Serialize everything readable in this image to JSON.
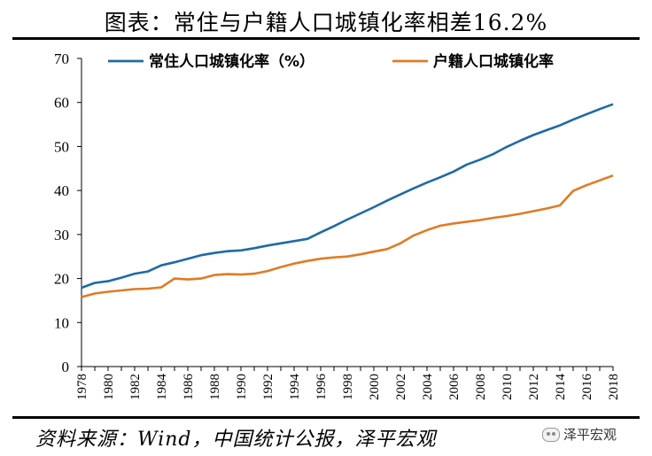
{
  "header": {
    "title": "图表：常住与户籍人口城镇化率相差16.2%"
  },
  "footer": {
    "source": "资料来源：Wind，中国统计公报，泽平宏观",
    "watermark": "泽平宏观"
  },
  "chart_data": {
    "type": "line",
    "title": "图表：常住与户籍人口城镇化率相差16.2%",
    "xlabel": "",
    "ylabel": "",
    "xlim": [
      1978,
      2018
    ],
    "ylim": [
      0,
      70
    ],
    "yticks": [
      0,
      10,
      20,
      30,
      40,
      50,
      60,
      70
    ],
    "xticks": [
      1978,
      1980,
      1982,
      1984,
      1986,
      1988,
      1990,
      1992,
      1994,
      1996,
      1998,
      2000,
      2002,
      2004,
      2006,
      2008,
      2010,
      2012,
      2014,
      2016,
      2018
    ],
    "grid": false,
    "legend_position": "top",
    "x": [
      1978,
      1979,
      1980,
      1981,
      1982,
      1983,
      1984,
      1985,
      1986,
      1987,
      1988,
      1989,
      1990,
      1991,
      1992,
      1993,
      1994,
      1995,
      1996,
      1997,
      1998,
      1999,
      2000,
      2001,
      2002,
      2003,
      2004,
      2005,
      2006,
      2007,
      2008,
      2009,
      2010,
      2011,
      2012,
      2013,
      2014,
      2015,
      2016,
      2017,
      2018
    ],
    "series": [
      {
        "name": "常住人口城镇化率（%）",
        "color": "#1f6aa5",
        "values": [
          17.9,
          19.0,
          19.4,
          20.2,
          21.1,
          21.6,
          23.0,
          23.7,
          24.5,
          25.3,
          25.8,
          26.2,
          26.4,
          26.9,
          27.5,
          28.0,
          28.5,
          29.0,
          30.5,
          31.9,
          33.4,
          34.8,
          36.2,
          37.7,
          39.1,
          40.5,
          41.8,
          43.0,
          44.3,
          45.9,
          47.0,
          48.3,
          49.9,
          51.3,
          52.6,
          53.7,
          54.8,
          56.1,
          57.3,
          58.5,
          59.6
        ]
      },
      {
        "name": "户籍人口城镇化率",
        "color": "#e07b24",
        "values": [
          15.8,
          16.6,
          17.0,
          17.3,
          17.6,
          17.7,
          18.0,
          20.0,
          19.8,
          20.0,
          20.8,
          21.0,
          20.9,
          21.1,
          21.7,
          22.6,
          23.4,
          24.0,
          24.5,
          24.8,
          25.0,
          25.5,
          26.1,
          26.7,
          28.0,
          29.8,
          31.0,
          32.0,
          32.5,
          32.9,
          33.3,
          33.8,
          34.2,
          34.7,
          35.3,
          35.9,
          36.6,
          39.9,
          41.2,
          42.3,
          43.4
        ]
      }
    ]
  }
}
